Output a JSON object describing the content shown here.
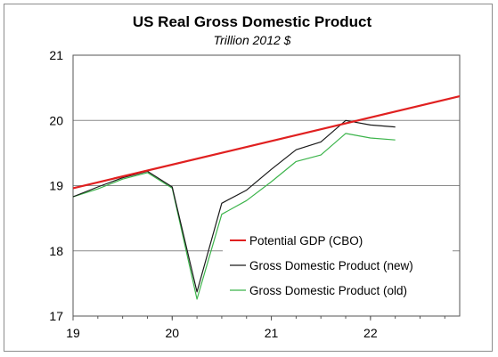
{
  "chart_data": {
    "type": "line",
    "title": "US Real Gross Domestic Product",
    "subtitle": "Trillion 2012 $",
    "xlabel": "",
    "ylabel": "",
    "xlim": [
      19,
      22.9
    ],
    "ylim": [
      17,
      21
    ],
    "x_ticks": [
      19,
      20,
      21,
      22
    ],
    "x_tick_labels": [
      "19",
      "20",
      "21",
      "22"
    ],
    "y_ticks": [
      17,
      18,
      19,
      20,
      21
    ],
    "y_tick_labels": [
      "17",
      "18",
      "19",
      "20",
      "21"
    ],
    "grid": "horizontal",
    "legend_position": "lower-center",
    "series": [
      {
        "name": "Potential GDP (CBO)",
        "color": "#e02020",
        "x": [
          19.0,
          22.9
        ],
        "y": [
          18.96,
          20.37
        ]
      },
      {
        "name": "Gross Domestic Product (new)",
        "color": "#1a1a1a",
        "x": [
          19.0,
          19.25,
          19.5,
          19.75,
          20.0,
          20.25,
          20.5,
          20.75,
          21.0,
          21.25,
          21.5,
          21.75,
          22.0,
          22.25
        ],
        "y": [
          18.83,
          18.98,
          19.12,
          19.22,
          18.98,
          17.37,
          18.73,
          18.93,
          19.25,
          19.55,
          19.67,
          20.0,
          19.93,
          19.9
        ]
      },
      {
        "name": "Gross Domestic Product (old)",
        "color": "#3cb44b",
        "x": [
          19.0,
          19.25,
          19.5,
          19.75,
          20.0,
          20.25,
          20.5,
          20.75,
          21.0,
          21.25,
          21.5,
          21.75,
          22.0,
          22.25
        ],
        "y": [
          18.83,
          18.95,
          19.1,
          19.2,
          18.96,
          17.26,
          18.56,
          18.77,
          19.06,
          19.37,
          19.47,
          19.8,
          19.73,
          19.7
        ]
      }
    ]
  }
}
